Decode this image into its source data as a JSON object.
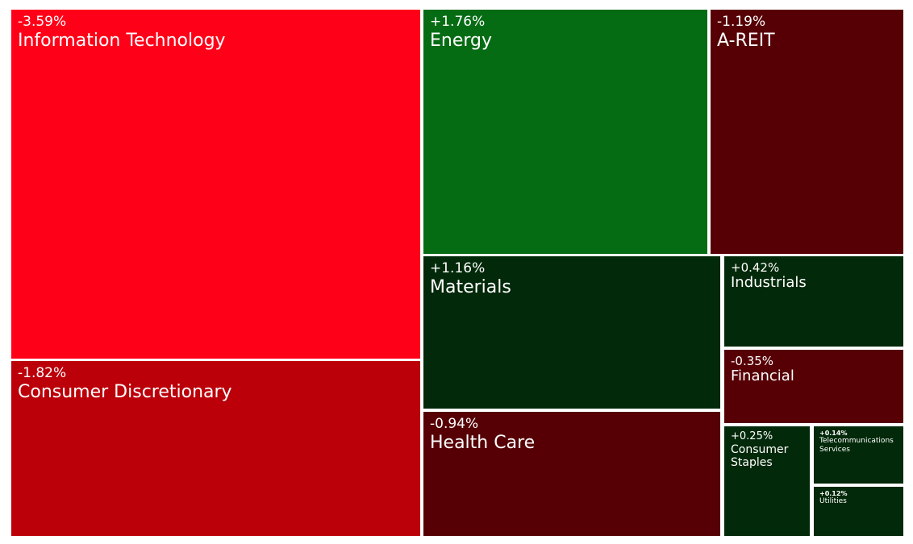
{
  "colors": {
    "strong_negative": "#ff0019",
    "negative": "#bb0009",
    "mild_negative": "#560005",
    "strong_positive": "#066c14",
    "mild_positive": "#022909",
    "background": "#ffffff"
  },
  "chart_data": {
    "type": "treemap",
    "unit": "%",
    "items": [
      {
        "name": "Information Technology",
        "change_label": "-3.59%",
        "value": -3.59
      },
      {
        "name": "Consumer Discretionary",
        "change_label": "-1.82%",
        "value": -1.82
      },
      {
        "name": "Energy",
        "change_label": "+1.76%",
        "value": 1.76
      },
      {
        "name": "A-REIT",
        "change_label": "-1.19%",
        "value": -1.19
      },
      {
        "name": "Materials",
        "change_label": "+1.16%",
        "value": 1.16
      },
      {
        "name": "Health Care",
        "change_label": "-0.94%",
        "value": -0.94
      },
      {
        "name": "Industrials",
        "change_label": "+0.42%",
        "value": 0.42
      },
      {
        "name": "Financial",
        "change_label": "-0.35%",
        "value": -0.35
      },
      {
        "name": "Consumer Staples",
        "change_label": "+0.25%",
        "value": 0.25
      },
      {
        "name": "Telecommunications Services",
        "change_label": "+0.14%",
        "value": 0.14
      },
      {
        "name": "Utilities",
        "change_label": "+0.12%",
        "value": 0.12
      }
    ]
  }
}
